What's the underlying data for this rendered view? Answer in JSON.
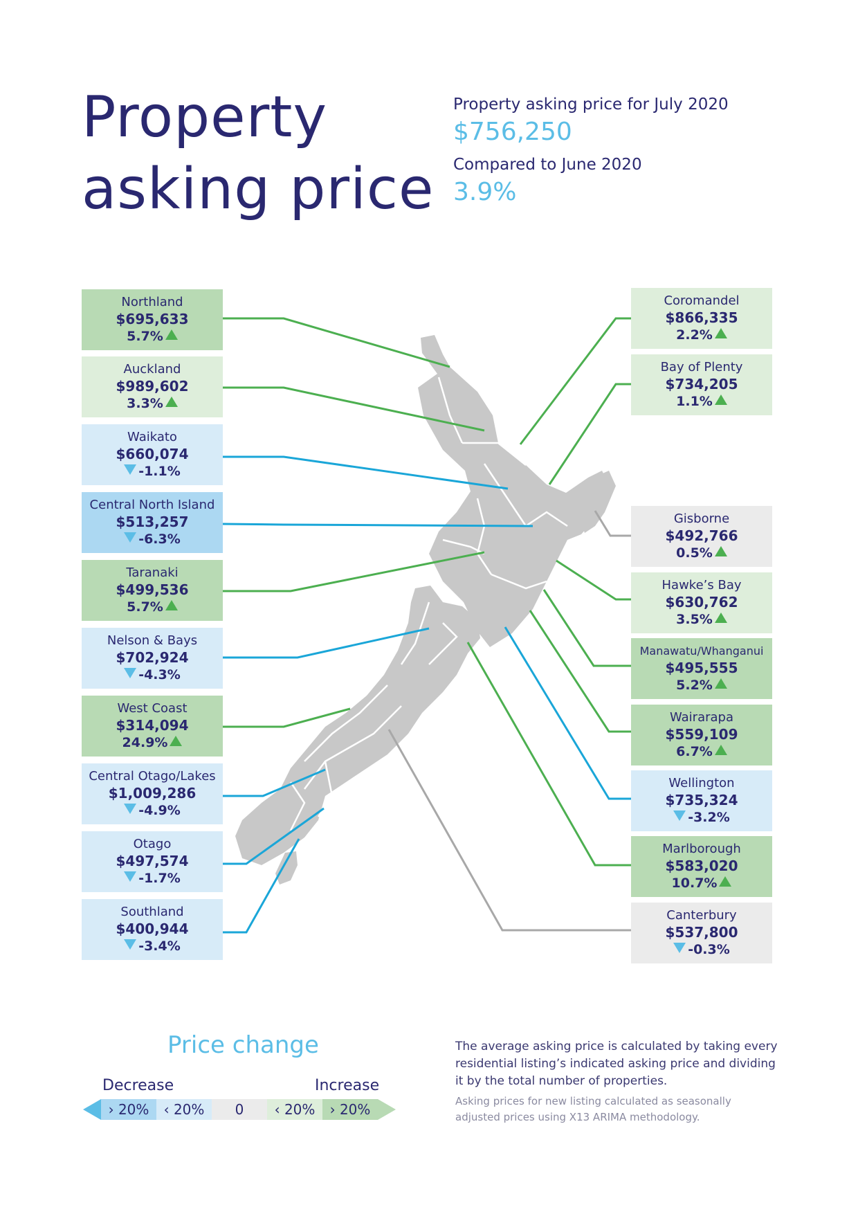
{
  "header": {
    "title_line1": "Property",
    "title_line2": "asking price",
    "summary_label": "Property asking price for July 2020",
    "summary_value": "$756,250",
    "compare_label": "Compared to June 2020",
    "compare_value": "3.9%"
  },
  "colors": {
    "strong_increase": "#b8dab4",
    "increase": "#deeedb",
    "decrease": "#d7ebf8",
    "strong_decrease": "#acd8f2",
    "neutral": "#ebebeb",
    "map_fill": "#c8c8c8",
    "line_green": "#4caf50",
    "line_blue": "#1aa6d8",
    "line_gray": "#a8a8a8"
  },
  "regions": {
    "northland": {
      "name": "Northland",
      "price": "$695,633",
      "change": "5.7%",
      "direction": "up",
      "band": "strong_increase"
    },
    "auckland": {
      "name": "Auckland",
      "price": "$989,602",
      "change": "3.3%",
      "direction": "up",
      "band": "increase"
    },
    "waikato": {
      "name": "Waikato",
      "price": "$660,074",
      "change": "-1.1%",
      "direction": "down",
      "band": "decrease"
    },
    "central_north_island": {
      "name": "Central North Island",
      "price": "$513,257",
      "change": "-6.3%",
      "direction": "down",
      "band": "strong_decrease"
    },
    "taranaki": {
      "name": "Taranaki",
      "price": "$499,536",
      "change": "5.7%",
      "direction": "up",
      "band": "strong_increase"
    },
    "nelson_bays": {
      "name": "Nelson & Bays",
      "price": "$702,924",
      "change": "-4.3%",
      "direction": "down",
      "band": "decrease"
    },
    "west_coast": {
      "name": "West Coast",
      "price": "$314,094",
      "change": "24.9%",
      "direction": "up",
      "band": "strong_increase"
    },
    "central_otago_lakes": {
      "name": "Central Otago/Lakes",
      "price": "$1,009,286",
      "change": "-4.9%",
      "direction": "down",
      "band": "decrease"
    },
    "otago": {
      "name": "Otago",
      "price": "$497,574",
      "change": "-1.7%",
      "direction": "down",
      "band": "decrease"
    },
    "southland": {
      "name": "Southland",
      "price": "$400,944",
      "change": "-3.4%",
      "direction": "down",
      "band": "decrease"
    },
    "coromandel": {
      "name": "Coromandel",
      "price": "$866,335",
      "change": "2.2%",
      "direction": "up",
      "band": "increase"
    },
    "bay_of_plenty": {
      "name": "Bay of Plenty",
      "price": "$734,205",
      "change": "1.1%",
      "direction": "up",
      "band": "increase"
    },
    "gisborne": {
      "name": "Gisborne",
      "price": "$492,766",
      "change": "0.5%",
      "direction": "up",
      "band": "neutral"
    },
    "hawkes_bay": {
      "name": "Hawke’s Bay",
      "price": "$630,762",
      "change": "3.5%",
      "direction": "up",
      "band": "increase"
    },
    "manawatu_whanganui": {
      "name": "Manawatu/Whanganui",
      "price": "$495,555",
      "change": "5.2%",
      "direction": "up",
      "band": "strong_increase"
    },
    "wairarapa": {
      "name": "Wairarapa",
      "price": "$559,109",
      "change": "6.7%",
      "direction": "up",
      "band": "strong_increase"
    },
    "wellington": {
      "name": "Wellington",
      "price": "$735,324",
      "change": "-3.2%",
      "direction": "down",
      "band": "decrease"
    },
    "marlborough": {
      "name": "Marlborough",
      "price": "$583,020",
      "change": "10.7%",
      "direction": "up",
      "band": "strong_increase"
    },
    "canterbury": {
      "name": "Canterbury",
      "price": "$537,800",
      "change": "-0.3%",
      "direction": "down",
      "band": "neutral"
    }
  },
  "legend": {
    "title": "Price change",
    "decrease_label": "Decrease",
    "increase_label": "Increase",
    "segments": [
      "› 20%",
      "‹ 20%",
      "0",
      "‹ 20%",
      "› 20%"
    ]
  },
  "notes": {
    "method": "The average asking price is calculated by taking every residential listing’s indicated asking price and dividing it by the total number of properties.",
    "seasonal": "Asking prices for new listing calculated as seasonally adjusted prices using X13 ARIMA methodology."
  }
}
